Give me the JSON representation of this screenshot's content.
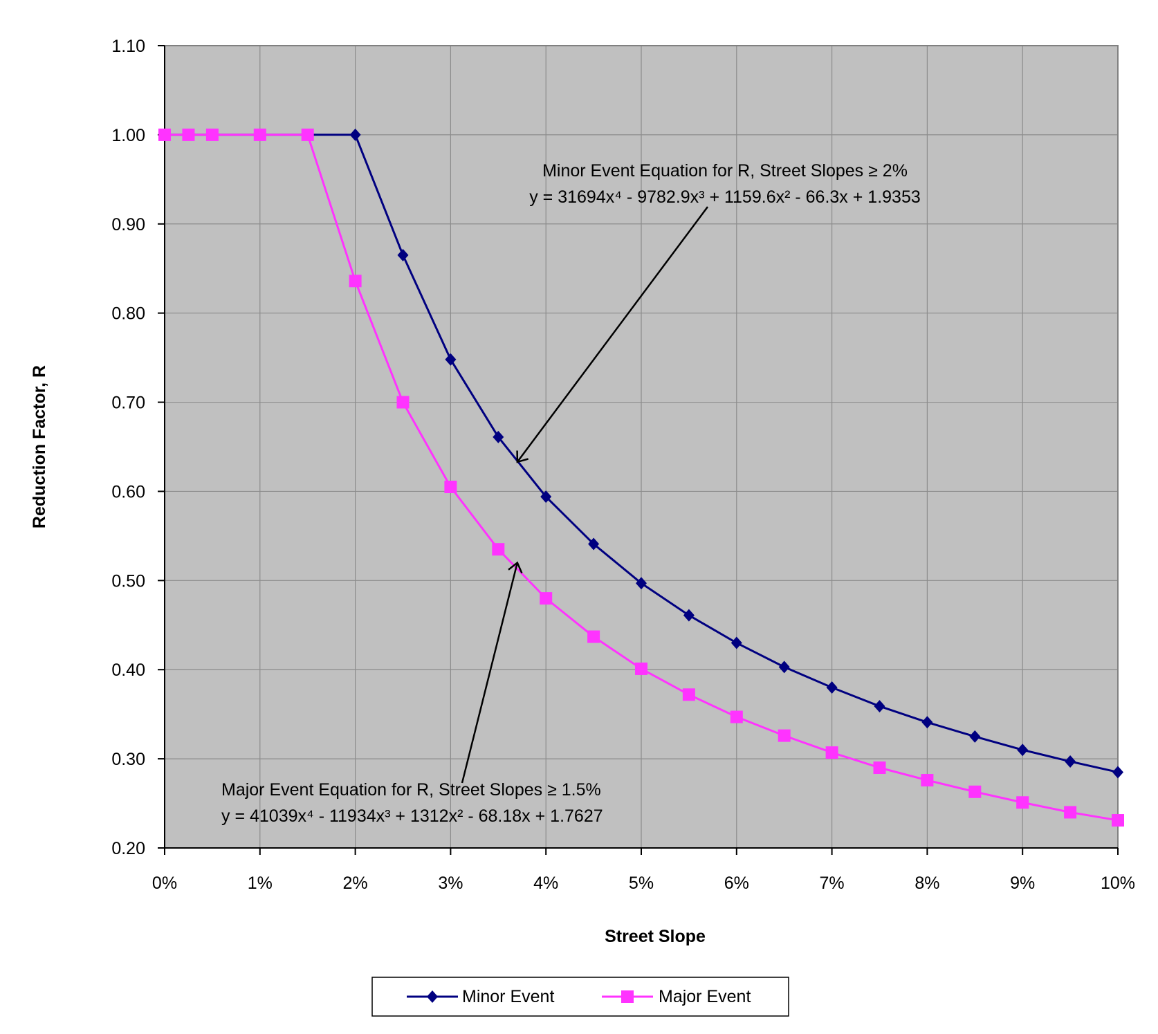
{
  "chart_data": {
    "type": "line",
    "title": "",
    "xlabel": "Street Slope",
    "ylabel": "Reduction Factor, R",
    "xlim": [
      0,
      10
    ],
    "ylim": [
      0.2,
      1.1
    ],
    "x_ticks": [
      0,
      1,
      2,
      3,
      4,
      5,
      6,
      7,
      8,
      9,
      10
    ],
    "x_tick_labels": [
      "0%",
      "1%",
      "2%",
      "3%",
      "4%",
      "5%",
      "6%",
      "7%",
      "8%",
      "9%",
      "10%"
    ],
    "y_ticks": [
      0.2,
      0.3,
      0.4,
      0.5,
      0.6,
      0.7,
      0.8,
      0.9,
      1.0,
      1.1
    ],
    "y_tick_labels": [
      "0.20",
      "0.30",
      "0.40",
      "0.50",
      "0.60",
      "0.70",
      "0.80",
      "0.90",
      "1.00",
      "1.10"
    ],
    "grid": true,
    "plot_background": "#c0c0c0",
    "legend_position": "bottom",
    "series": [
      {
        "name": "Minor Event",
        "color": "#000080",
        "marker": "diamond",
        "x": [
          0,
          2,
          2.5,
          3,
          3.5,
          4,
          4.5,
          5,
          5.5,
          6,
          6.5,
          7,
          7.5,
          8,
          8.5,
          9,
          9.5,
          10
        ],
        "y": [
          1.0,
          1.0,
          0.865,
          0.748,
          0.661,
          0.594,
          0.541,
          0.497,
          0.461,
          0.43,
          0.403,
          0.38,
          0.359,
          0.341,
          0.325,
          0.31,
          0.297,
          0.285
        ],
        "marker_mask": [
          false,
          true,
          true,
          true,
          true,
          true,
          true,
          true,
          true,
          true,
          true,
          true,
          true,
          true,
          true,
          true,
          true,
          true
        ]
      },
      {
        "name": "Major Event",
        "color": "#ff33ff",
        "marker": "square",
        "x": [
          0,
          0.25,
          0.5,
          1,
          1.5,
          2,
          2.5,
          3,
          3.5,
          4,
          4.5,
          5,
          5.5,
          6,
          6.5,
          7,
          7.5,
          8,
          8.5,
          9,
          9.5,
          10
        ],
        "y": [
          1.0,
          1.0,
          1.0,
          1.0,
          1.0,
          0.836,
          0.7,
          0.605,
          0.535,
          0.48,
          0.437,
          0.401,
          0.372,
          0.347,
          0.326,
          0.307,
          0.29,
          0.276,
          0.263,
          0.251,
          0.24,
          0.231
        ]
      }
    ],
    "annotations": [
      {
        "id": "minor",
        "line1": "Minor Event Equation for R, Street Slopes ≥ 2%",
        "line2": "y = 31694x⁴ - 9782.9x³ + 1159.6x² - 66.3x + 1.9353",
        "arrow_to": [
          3.7,
          0.633
        ]
      },
      {
        "id": "major",
        "line1": "Major Event Equation for R, Street Slopes ≥ 1.5%",
        "line2": "y = 41039x⁴ - 11934x³ + 1312x² - 68.18x + 1.7627",
        "arrow_to": [
          3.7,
          0.52
        ]
      }
    ]
  }
}
